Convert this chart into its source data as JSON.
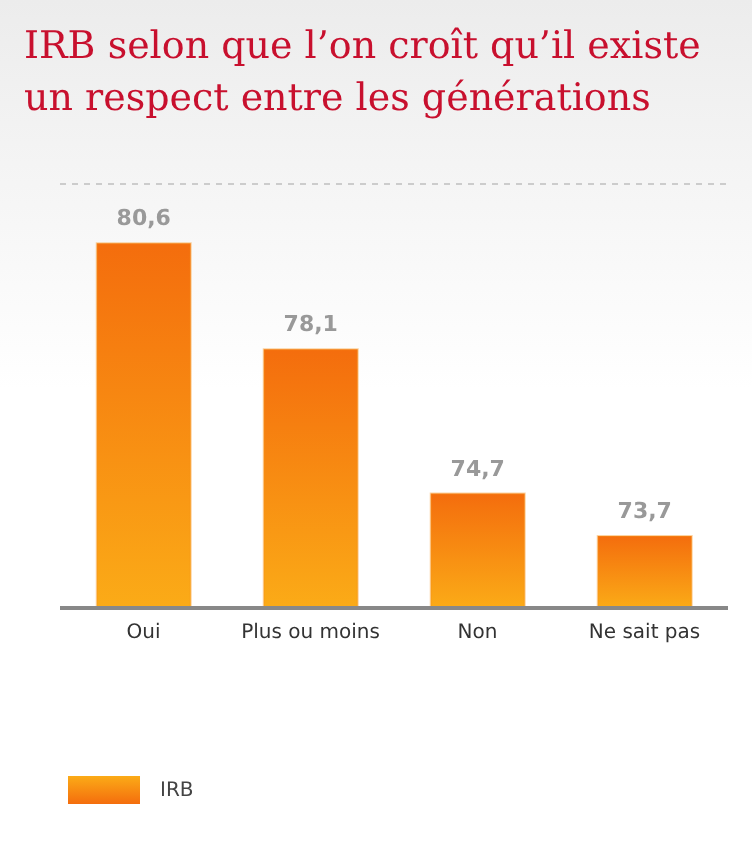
{
  "chart_data": {
    "type": "bar",
    "title": "IRB selon que l’on croît qu’il existe un respect entre les générations",
    "categories": [
      "Oui",
      "Plus ou moins",
      "Non",
      "Ne sait pas"
    ],
    "series": [
      {
        "name": "IRB",
        "color": "#f7931a",
        "values": [
          80.6,
          78.1,
          74.7,
          73.7
        ],
        "value_labels": [
          "80,6",
          "78,1",
          "74,7",
          "73,7"
        ]
      }
    ],
    "ylim": [
      72,
      82
    ],
    "tick_labels": "x",
    "legend": "bottom left"
  }
}
